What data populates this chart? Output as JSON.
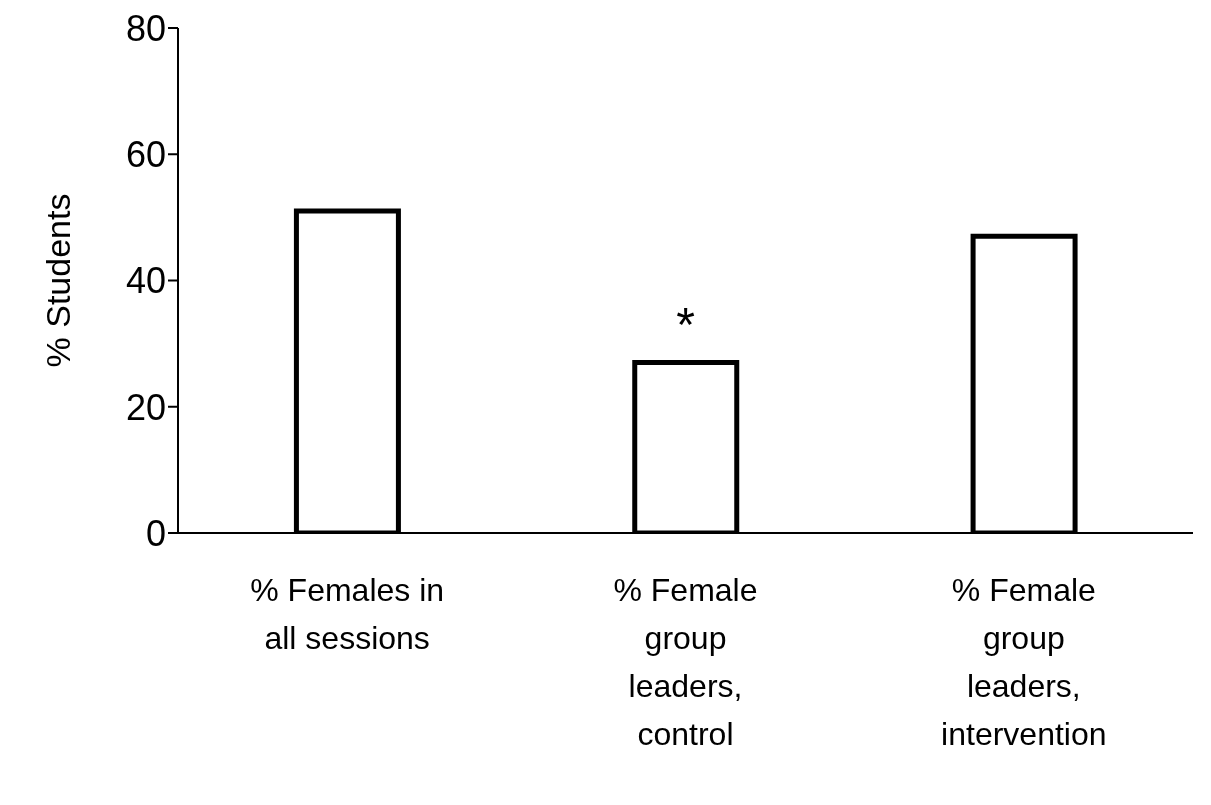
{
  "chart_data": {
    "type": "bar",
    "ylabel": "% Students",
    "categories": [
      "% Females in all sessions",
      "% Female group leaders, control",
      "% Female group leaders, intervention"
    ],
    "values": [
      51,
      27,
      47
    ],
    "color": "#ffffff",
    "ylim": [
      0,
      80
    ],
    "yticks": [
      0,
      20,
      40,
      60,
      80
    ],
    "annotations": [
      {
        "text": "*",
        "x": "% Female group leaders, control",
        "y": 27
      }
    ]
  }
}
